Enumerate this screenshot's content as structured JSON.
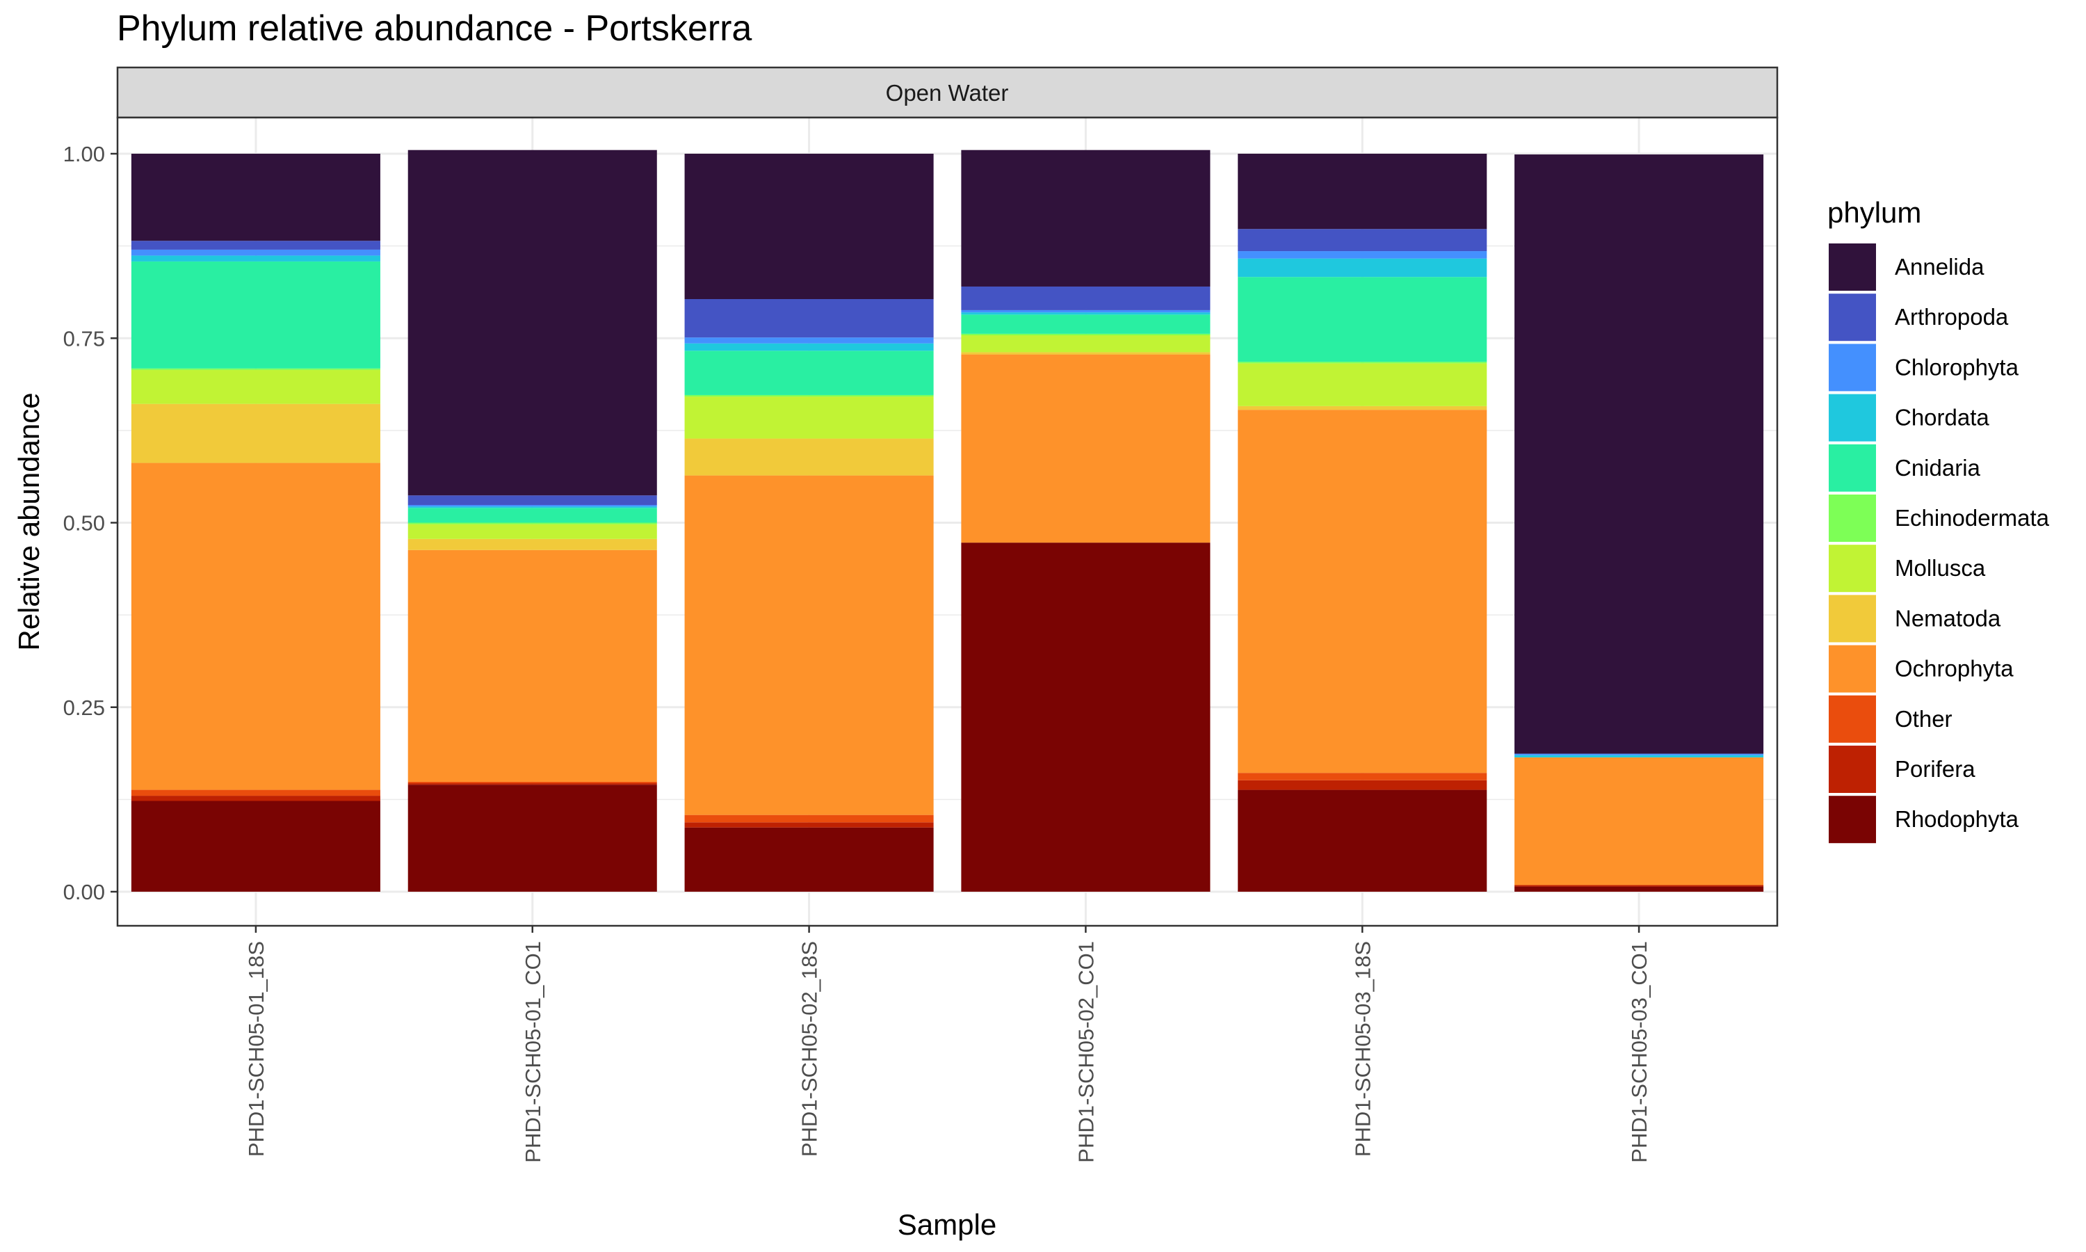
{
  "chart_data": {
    "type": "bar",
    "stacked": true,
    "title": "Phylum relative abundance - Portskerra",
    "facet_label": "Open Water",
    "xlabel": "Sample",
    "ylabel": "Relative abundance",
    "ylim": [
      0,
      1
    ],
    "yticks": [
      "0.00",
      "0.25",
      "0.50",
      "0.75",
      "1.00"
    ],
    "grid": true,
    "legend_title": "phylum",
    "legend_position": "right",
    "categories": [
      "PHD1-SCH05-01_18S",
      "PHD1-SCH05-01_CO1",
      "PHD1-SCH05-02_18S",
      "PHD1-SCH05-02_CO1",
      "PHD1-SCH05-03_18S",
      "PHD1-SCH05-03_CO1"
    ],
    "series": [
      {
        "name": "Annelida",
        "color": "#30123b",
        "values": [
          0.118,
          0.468,
          0.197,
          0.185,
          0.102,
          0.812
        ]
      },
      {
        "name": "Arthropoda",
        "color": "#4454c4",
        "values": [
          0.012,
          0.013,
          0.052,
          0.032,
          0.03,
          0.0
        ]
      },
      {
        "name": "Chlorophyta",
        "color": "#4490fe",
        "values": [
          0.008,
          0.002,
          0.008,
          0.003,
          0.01,
          0.002
        ]
      },
      {
        "name": "Chordata",
        "color": "#1fc8de",
        "values": [
          0.008,
          0.002,
          0.01,
          0.003,
          0.025,
          0.003
        ]
      },
      {
        "name": "Cnidaria",
        "color": "#29efa2",
        "values": [
          0.145,
          0.02,
          0.06,
          0.026,
          0.115,
          0.0
        ]
      },
      {
        "name": "Echinodermata",
        "color": "#7dff56",
        "values": [
          0.002,
          0.002,
          0.002,
          0.002,
          0.002,
          0.0
        ]
      },
      {
        "name": "Mollusca",
        "color": "#c1f334",
        "values": [
          0.046,
          0.02,
          0.057,
          0.023,
          0.058,
          0.0
        ]
      },
      {
        "name": "Nematoda",
        "color": "#f1ca3a",
        "values": [
          0.08,
          0.015,
          0.05,
          0.003,
          0.005,
          0.0
        ]
      },
      {
        "name": "Ochrophyta",
        "color": "#fe922a",
        "values": [
          0.443,
          0.314,
          0.46,
          0.255,
          0.492,
          0.173
        ]
      },
      {
        "name": "Other",
        "color": "#ea4d0d",
        "values": [
          0.008,
          0.002,
          0.01,
          0.0,
          0.01,
          0.0
        ]
      },
      {
        "name": "Porifera",
        "color": "#be2102",
        "values": [
          0.007,
          0.002,
          0.007,
          0.0,
          0.013,
          0.002
        ]
      },
      {
        "name": "Rhodophyta",
        "color": "#7a0403",
        "values": [
          0.123,
          0.145,
          0.087,
          0.473,
          0.138,
          0.007
        ]
      }
    ]
  }
}
